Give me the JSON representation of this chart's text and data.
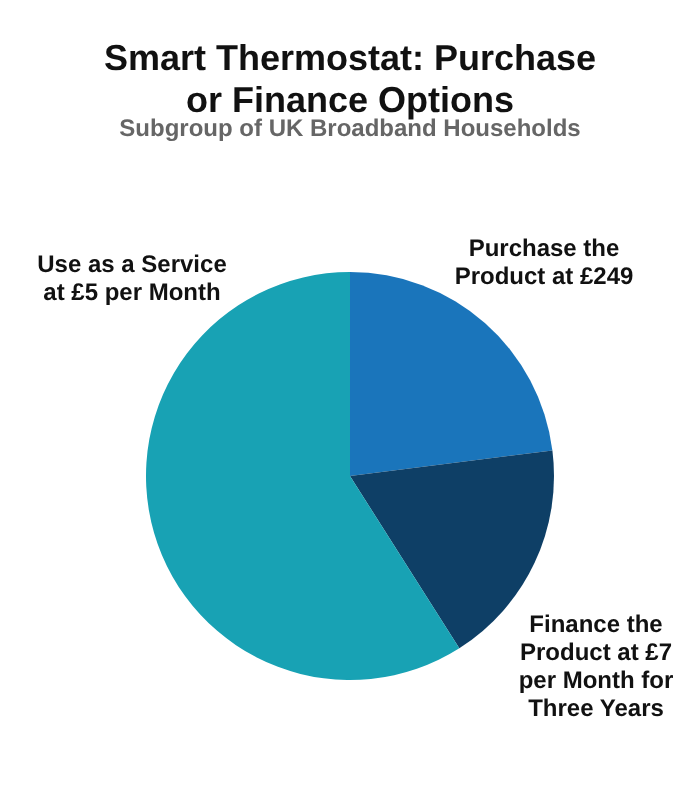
{
  "chart_data": {
    "type": "pie",
    "title": "Smart Thermostat: Purchase or Finance Options",
    "subtitle": "Subgroup of UK Broadband Households",
    "categories": [
      "Purchase the Product at £249",
      "Finance the Product at £7 per Month for Three Years",
      "Use as a Service at £5 per Month"
    ],
    "values": [
      23,
      18,
      59
    ],
    "colors": [
      "#1a75bb",
      "#0e3f66",
      "#18a2b4"
    ]
  }
}
